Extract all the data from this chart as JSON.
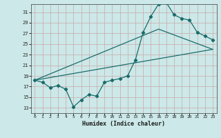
{
  "xlabel": "Humidex (Indice chaleur)",
  "bg_color": "#cce8e8",
  "grid_color": "#c8a8a8",
  "line_color": "#1a6b6b",
  "xlim": [
    -0.5,
    23.5
  ],
  "ylim": [
    12,
    32.5
  ],
  "xticks": [
    0,
    1,
    2,
    3,
    4,
    5,
    6,
    7,
    8,
    9,
    10,
    11,
    12,
    13,
    14,
    15,
    16,
    17,
    18,
    19,
    20,
    21,
    22,
    23
  ],
  "yticks": [
    13,
    15,
    17,
    19,
    21,
    23,
    25,
    27,
    29,
    31
  ],
  "line1_x": [
    0,
    1,
    2,
    3,
    4,
    5,
    6,
    7,
    8,
    9,
    10,
    11,
    12,
    13,
    14,
    15,
    16,
    17,
    18,
    19,
    20,
    21,
    22,
    23
  ],
  "line1_y": [
    18.2,
    17.8,
    16.8,
    17.2,
    16.5,
    13.2,
    14.5,
    15.5,
    15.2,
    17.8,
    18.2,
    18.5,
    19.0,
    22.0,
    27.2,
    30.2,
    32.5,
    32.8,
    30.5,
    29.8,
    29.5,
    27.2,
    26.5,
    25.8
  ],
  "line2_x": [
    0,
    23
  ],
  "line2_y": [
    18.2,
    24.0
  ],
  "line3_x": [
    0,
    16,
    23
  ],
  "line3_y": [
    18.2,
    27.8,
    24.0
  ]
}
